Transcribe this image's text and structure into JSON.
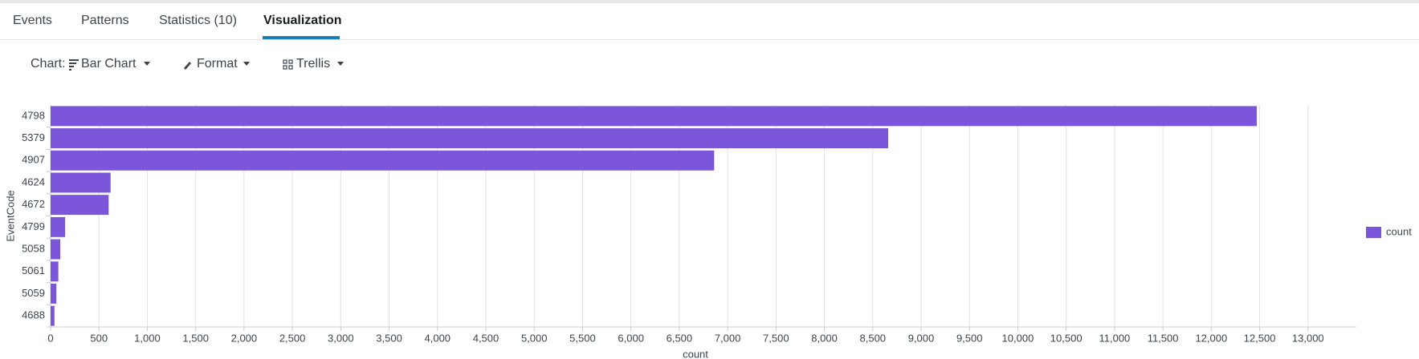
{
  "tabs": [
    "Events",
    "Patterns",
    "Statistics (10)",
    "Visualization"
  ],
  "toolbar": {
    "chart_label": "Chart:",
    "chart_type": "Bar Chart",
    "format": "Format",
    "trellis": "Trellis"
  },
  "chart_data": {
    "type": "bar",
    "horizontal": true,
    "categories": [
      "4798",
      "5379",
      "4907",
      "4624",
      "4672",
      "4799",
      "5058",
      "5061",
      "5059",
      "4688"
    ],
    "series": [
      {
        "name": "count",
        "color": "#7b56db",
        "values": [
          12470,
          8660,
          6860,
          620,
          600,
          150,
          100,
          80,
          60,
          40
        ]
      }
    ],
    "x_label": "count",
    "y_label": "EventCode",
    "xlim": [
      0,
      13500
    ],
    "xticks": [
      0,
      500,
      {
        "value": 1000,
        "label": "1,000"
      },
      {
        "value": 1500,
        "label": "1,500"
      },
      {
        "value": 2000,
        "label": "2,000"
      },
      {
        "value": 2500,
        "label": "2,500"
      },
      {
        "value": 3000,
        "label": "3,000"
      },
      {
        "value": 3500,
        "label": "3,500"
      },
      {
        "value": 4000,
        "label": "4,000"
      },
      {
        "value": 4500,
        "label": "4,500"
      },
      {
        "value": 5000,
        "label": "5,000"
      },
      {
        "value": 5500,
        "label": "5,500"
      },
      {
        "value": 6000,
        "label": "6,000"
      },
      {
        "value": 6500,
        "label": "6,500"
      },
      {
        "value": 7000,
        "label": "7,000"
      },
      {
        "value": 7500,
        "label": "7,500"
      },
      {
        "value": 8000,
        "label": "8,000"
      },
      {
        "value": 8500,
        "label": "8,500"
      },
      {
        "value": 9000,
        "label": "9,000"
      },
      {
        "value": 9500,
        "label": "9,500"
      },
      {
        "value": 10000,
        "label": "10,000"
      },
      {
        "value": 10500,
        "label": "10,500"
      },
      {
        "value": 11000,
        "label": "11,000"
      },
      {
        "value": 11500,
        "label": "11,500"
      },
      {
        "value": 12000,
        "label": "12,000"
      },
      {
        "value": 12500,
        "label": "12,500"
      },
      {
        "value": 13000,
        "label": "13,000"
      }
    ],
    "grid": true,
    "legend": "right"
  }
}
